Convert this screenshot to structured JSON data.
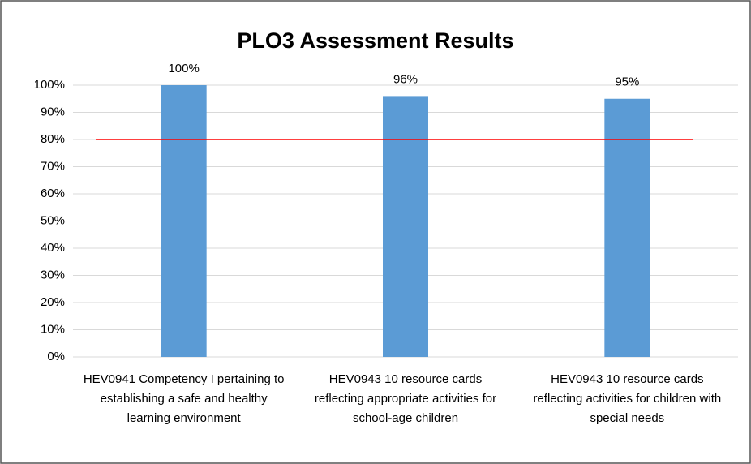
{
  "chart_data": {
    "type": "bar",
    "title": "PLO3 Assessment Results",
    "categories": [
      "HEV0941 Competency I pertaining to establishing a safe and healthy learning environment",
      "HEV0943 10 resource cards reflecting appropriate activities for school-age children",
      "HEV0943  10 resource cards reflecting activities for children with special needs"
    ],
    "values": [
      100,
      96,
      95
    ],
    "value_labels": [
      "100%",
      "96%",
      "95%"
    ],
    "color": "#5b9bd5",
    "ylim": [
      0,
      100
    ],
    "yticks": [
      {
        "value": 0,
        "label": "0%"
      },
      {
        "value": 10,
        "label": "10%"
      },
      {
        "value": 20,
        "label": "20%"
      },
      {
        "value": 30,
        "label": "30%"
      },
      {
        "value": 40,
        "label": "40%"
      },
      {
        "value": 50,
        "label": "50%"
      },
      {
        "value": 60,
        "label": "60%"
      },
      {
        "value": 70,
        "label": "70%"
      },
      {
        "value": 80,
        "label": "80%"
      },
      {
        "value": 90,
        "label": "90%"
      },
      {
        "value": 100,
        "label": "100%"
      }
    ],
    "grid": true,
    "reference_line": {
      "value": 80,
      "color": "#ff0000"
    }
  }
}
